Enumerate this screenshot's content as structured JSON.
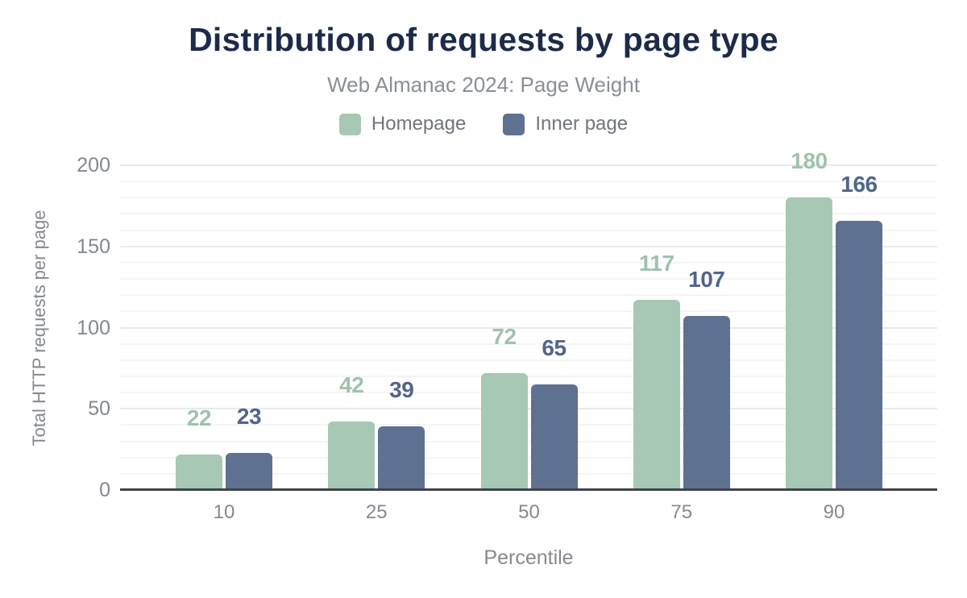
{
  "chart_data": {
    "type": "bar",
    "title": "Distribution of requests by page type",
    "subtitle": "Web Almanac 2024: Page Weight",
    "categories": [
      "10",
      "25",
      "50",
      "75",
      "90"
    ],
    "series": [
      {
        "name": "Homepage",
        "color": "#a6c8b4",
        "label_color": "#9fc2ad",
        "values": [
          22,
          42,
          72,
          117,
          180
        ]
      },
      {
        "name": "Inner page",
        "color": "#5e7190",
        "label_color": "#52648a",
        "values": [
          23,
          39,
          65,
          107,
          166
        ]
      }
    ],
    "xlabel": "Percentile",
    "ylabel": "Total HTTP requests per page",
    "ylim": [
      0,
      200
    ],
    "yticks": [
      0,
      50,
      100,
      150,
      200
    ],
    "minor_grid_step": 10,
    "major_grid_step": 50,
    "grid": true,
    "legend_position": "top",
    "colors": {
      "title": "#1c2b4a",
      "subtitle": "#8a8e98",
      "axis_text": "#84888f",
      "axis_line": "#3f444b",
      "grid_major": "#e9eaec",
      "grid_minor": "#f5f5f6",
      "background": "#ffffff"
    }
  }
}
